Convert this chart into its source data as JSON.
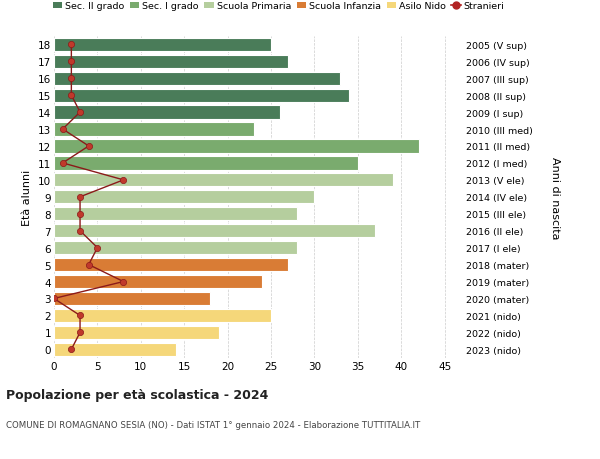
{
  "ages": [
    18,
    17,
    16,
    15,
    14,
    13,
    12,
    11,
    10,
    9,
    8,
    7,
    6,
    5,
    4,
    3,
    2,
    1,
    0
  ],
  "right_labels": [
    "2005 (V sup)",
    "2006 (IV sup)",
    "2007 (III sup)",
    "2008 (II sup)",
    "2009 (I sup)",
    "2010 (III med)",
    "2011 (II med)",
    "2012 (I med)",
    "2013 (V ele)",
    "2014 (IV ele)",
    "2015 (III ele)",
    "2016 (II ele)",
    "2017 (I ele)",
    "2018 (mater)",
    "2019 (mater)",
    "2020 (mater)",
    "2021 (nido)",
    "2022 (nido)",
    "2023 (nido)"
  ],
  "bar_values": [
    25,
    27,
    33,
    34,
    26,
    23,
    42,
    35,
    39,
    30,
    28,
    37,
    28,
    27,
    24,
    18,
    25,
    19,
    14
  ],
  "bar_colors": [
    "#4a7c59",
    "#4a7c59",
    "#4a7c59",
    "#4a7c59",
    "#4a7c59",
    "#7aab6e",
    "#7aab6e",
    "#7aab6e",
    "#b5ce9e",
    "#b5ce9e",
    "#b5ce9e",
    "#b5ce9e",
    "#b5ce9e",
    "#d97c35",
    "#d97c35",
    "#d97c35",
    "#f5d77a",
    "#f5d77a",
    "#f5d77a"
  ],
  "stranieri_values": [
    2,
    2,
    2,
    2,
    3,
    1,
    4,
    1,
    8,
    3,
    3,
    3,
    5,
    4,
    8,
    0,
    3,
    3,
    2
  ],
  "legend_labels": [
    "Sec. II grado",
    "Sec. I grado",
    "Scuola Primaria",
    "Scuola Infanzia",
    "Asilo Nido",
    "Stranieri"
  ],
  "legend_colors": [
    "#4a7c59",
    "#7aab6e",
    "#b5ce9e",
    "#d97c35",
    "#f5d77a",
    "#b22222"
  ],
  "ylabel_left": "Età alunni",
  "ylabel_right": "Anni di nascita",
  "title": "Popolazione per età scolastica - 2024",
  "subtitle": "COMUNE DI ROMAGNANO SESIA (NO) - Dati ISTAT 1° gennaio 2024 - Elaborazione TUTTITALIA.IT",
  "xlim": [
    0,
    47
  ],
  "bar_height": 0.78,
  "bg_color": "#ffffff",
  "grid_color": "#cccccc",
  "stranieri_line_color": "#8b1a1a",
  "stranieri_dot_color": "#c0392b"
}
